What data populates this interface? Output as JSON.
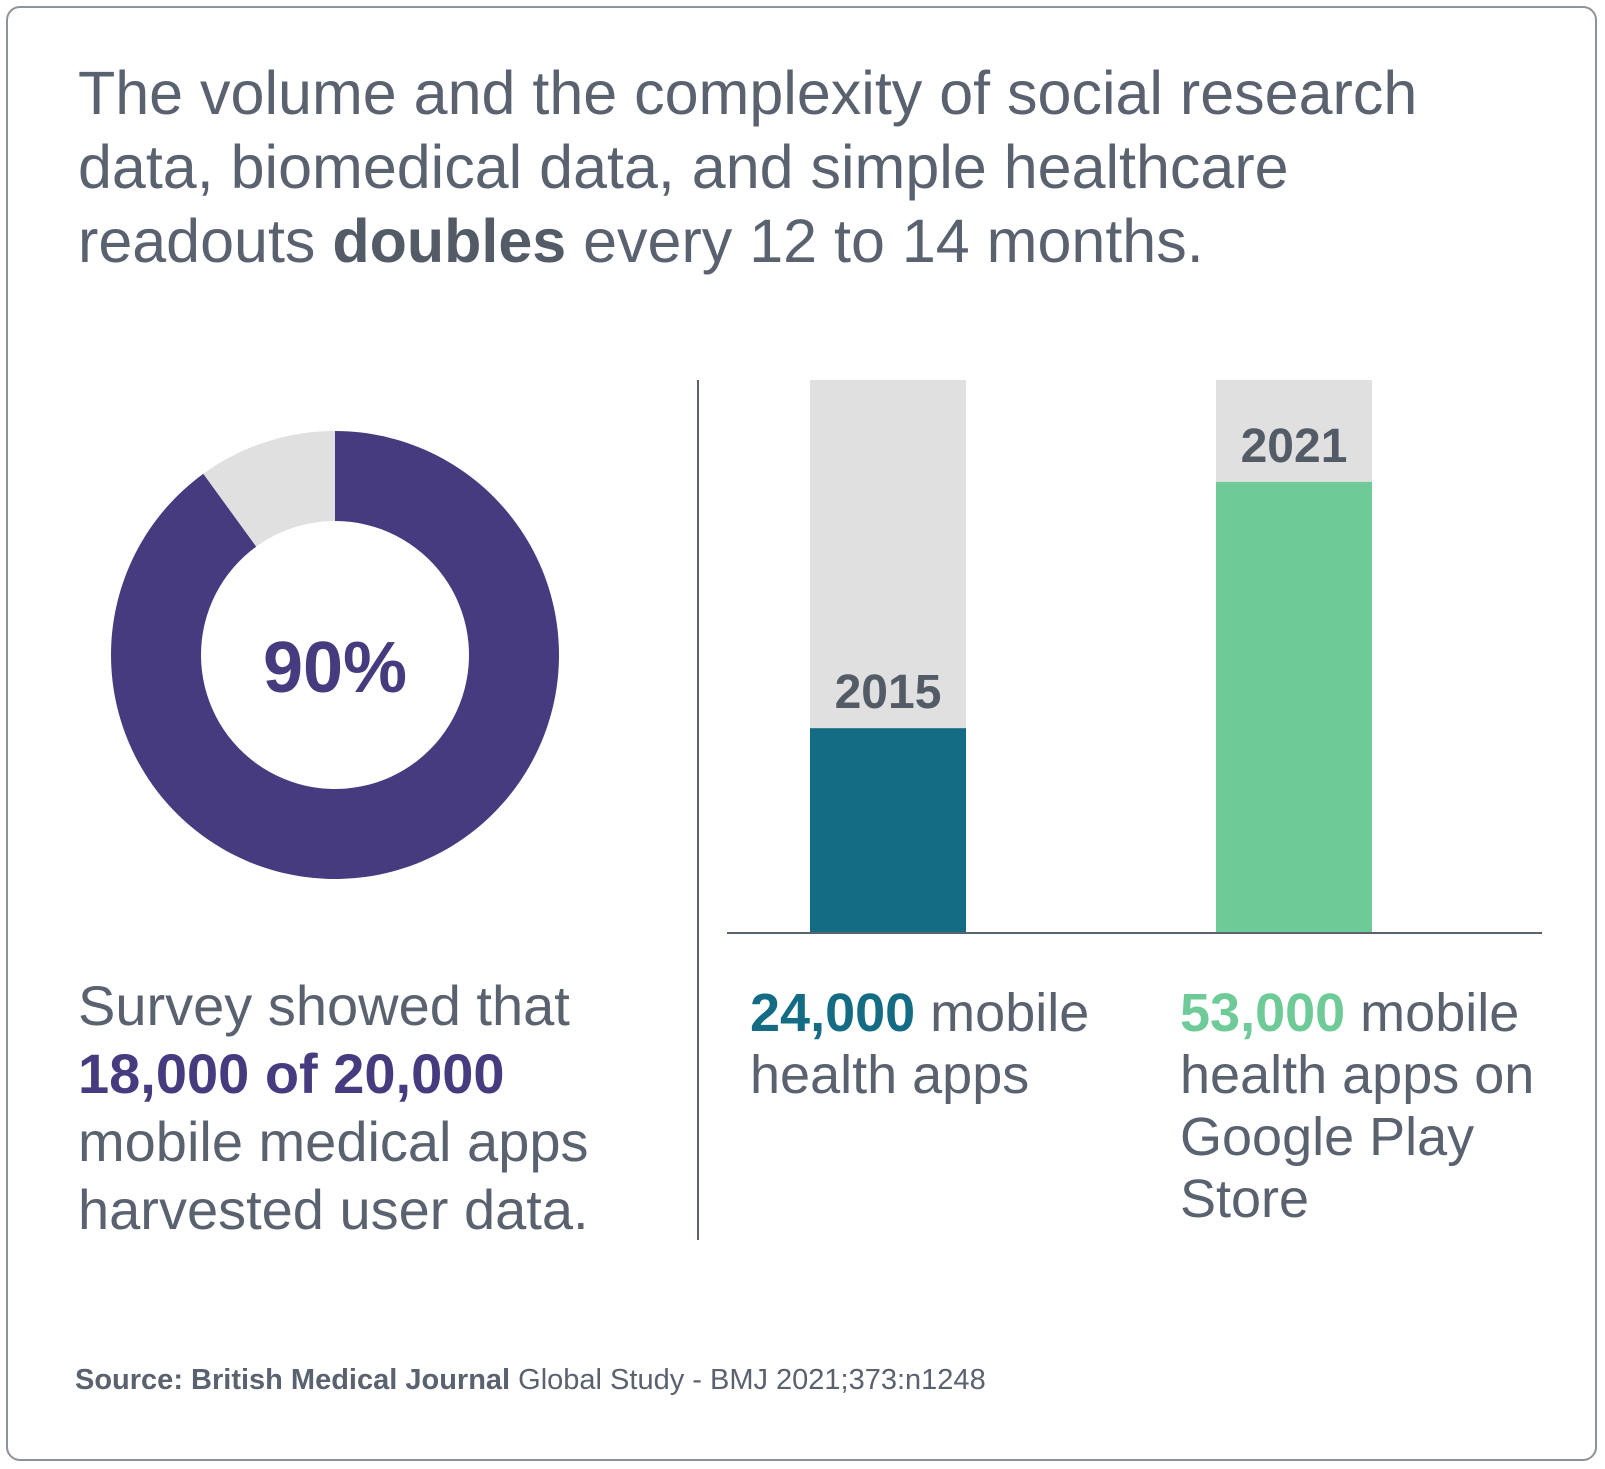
{
  "headline": {
    "before": "The volume and the complexity of social research data, biomedical data, and simple healthcare readouts ",
    "bold": "doubles",
    "after": " every 12 to 14 months."
  },
  "survey": {
    "lead": "Survey showed that",
    "highlight": "18,000 of 20,000",
    "rest": "mobile medical apps harvested user data."
  },
  "captions": [
    {
      "number": "24,000",
      "text": " mobile health apps"
    },
    {
      "number": "53,000",
      "text": " mobile health apps on Google Play Store"
    }
  ],
  "source": {
    "label": "Source: British Medical Journal",
    "text": " Global Study - BMJ 2021;373:n1248"
  },
  "colors": {
    "donut_fill": "#463b7e",
    "donut_rest": "#e0e0e0",
    "bar_2015": "#136b84",
    "bar_2021": "#6ecb98",
    "bar_track": "#e0e0e0",
    "text": "#5a6270"
  },
  "chart_data": [
    {
      "type": "pie",
      "subtype": "donut",
      "center_label": "90%",
      "values": [
        90,
        10
      ],
      "colors": [
        "#463b7e",
        "#e0e0e0"
      ]
    },
    {
      "type": "bar",
      "categories": [
        "2015",
        "2021"
      ],
      "values": [
        24000,
        53000
      ],
      "ylim": [
        0,
        65000
      ],
      "colors": [
        "#136b84",
        "#6ecb98"
      ],
      "track_color": "#e0e0e0"
    }
  ]
}
